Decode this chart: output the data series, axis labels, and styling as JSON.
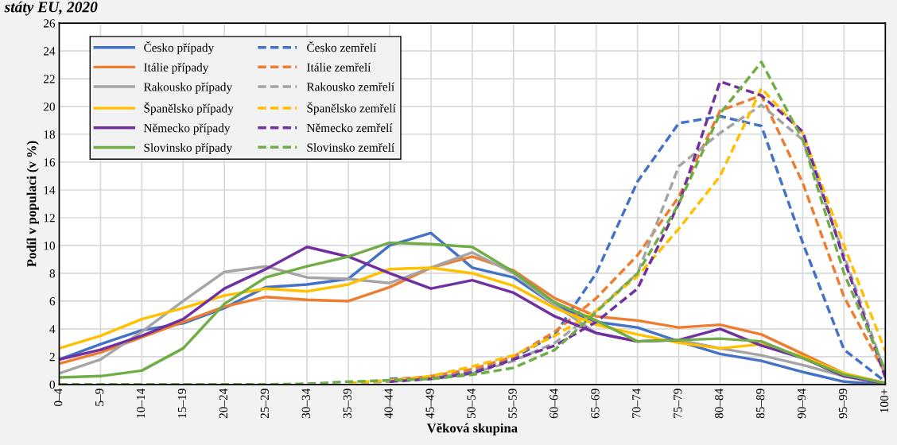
{
  "chart_data": {
    "type": "line",
    "title": "státy EU, 2020",
    "xlabel": "Věková skupina",
    "ylabel": "Podíl v populaci (v %)",
    "categories": [
      "0–4",
      "5–9",
      "10–14",
      "15–19",
      "20–24",
      "25–29",
      "30–34",
      "35–39",
      "40–44",
      "45–49",
      "50–54",
      "55–59",
      "60–64",
      "65–69",
      "70–74",
      "75–79",
      "80–84",
      "85–89",
      "90–94",
      "95–99",
      "100+"
    ],
    "ylim": [
      0,
      26
    ],
    "yticks": [
      0,
      2,
      4,
      6,
      8,
      10,
      12,
      14,
      16,
      18,
      20,
      22,
      24,
      26
    ],
    "grid": true,
    "legend": "top left",
    "marker": "none",
    "series": [
      {
        "name": "Česko případy",
        "color": "#4472c4",
        "line_style": "solid",
        "values": [
          1.8,
          2.9,
          3.9,
          4.4,
          5.5,
          7.0,
          7.2,
          7.6,
          10.0,
          10.9,
          8.4,
          7.7,
          5.7,
          4.5,
          4.1,
          3.1,
          2.2,
          1.7,
          0.9,
          0.2,
          0.0
        ]
      },
      {
        "name": "Česko zemřelí",
        "color": "#4472c4",
        "line_style": "dashed",
        "values": [
          null,
          null,
          null,
          null,
          null,
          null,
          null,
          null,
          0.4,
          0.5,
          0.9,
          1.9,
          3.6,
          8.0,
          14.6,
          18.8,
          19.3,
          18.6,
          10.2,
          2.5,
          0.2
        ]
      },
      {
        "name": "Itálie případy",
        "color": "#ed7d31",
        "line_style": "solid",
        "values": [
          1.5,
          2.3,
          3.4,
          4.5,
          5.6,
          6.3,
          6.1,
          6.0,
          7.0,
          8.4,
          9.2,
          8.2,
          6.2,
          4.9,
          4.6,
          4.1,
          4.3,
          3.6,
          2.2,
          0.8,
          0.1
        ]
      },
      {
        "name": "Itálie zemřelí",
        "color": "#ed7d31",
        "line_style": "dashed",
        "values": [
          null,
          null,
          null,
          null,
          null,
          null,
          null,
          null,
          0.3,
          0.6,
          1.1,
          2.0,
          3.8,
          6.2,
          9.3,
          13.5,
          19.7,
          20.8,
          14.5,
          6.3,
          0.8
        ]
      },
      {
        "name": "Rakousko případy",
        "color": "#a5a5a5",
        "line_style": "solid",
        "values": [
          0.8,
          1.8,
          3.8,
          6.0,
          8.1,
          8.5,
          7.7,
          7.6,
          7.3,
          8.4,
          9.5,
          8.0,
          5.7,
          3.7,
          3.1,
          3.2,
          2.6,
          2.1,
          1.4,
          0.6,
          0.05
        ]
      },
      {
        "name": "Rakousko zemřelí",
        "color": "#a5a5a5",
        "line_style": "dashed",
        "values": [
          null,
          null,
          null,
          null,
          null,
          null,
          null,
          0.1,
          0.2,
          0.5,
          0.8,
          1.7,
          3.0,
          5.3,
          8.0,
          15.7,
          18.1,
          20.1,
          17.6,
          9.3,
          0.8
        ]
      },
      {
        "name": "Španělsko případy",
        "color": "#ffc000",
        "line_style": "solid",
        "values": [
          2.6,
          3.5,
          4.7,
          5.5,
          6.4,
          6.9,
          6.7,
          7.2,
          8.3,
          8.4,
          8.0,
          7.1,
          5.5,
          4.3,
          3.6,
          3.0,
          2.6,
          2.9,
          2.0,
          0.8,
          0.1
        ]
      },
      {
        "name": "Španělsko zemřelí",
        "color": "#ffc000",
        "line_style": "dashed",
        "values": [
          null,
          null,
          null,
          null,
          null,
          null,
          null,
          0.1,
          0.3,
          0.6,
          1.3,
          2.1,
          3.5,
          5.3,
          7.8,
          11.2,
          15.0,
          21.3,
          18.1,
          10.0,
          2.4
        ]
      },
      {
        "name": "Německo případy",
        "color": "#7030a0",
        "line_style": "solid",
        "values": [
          1.8,
          2.5,
          3.5,
          4.7,
          6.9,
          8.3,
          9.9,
          9.2,
          8.0,
          6.9,
          7.5,
          6.6,
          4.9,
          3.7,
          3.1,
          3.2,
          4.0,
          2.8,
          1.9,
          0.6,
          0.05
        ]
      },
      {
        "name": "Německo zemřelí",
        "color": "#7030a0",
        "line_style": "dashed",
        "values": [
          null,
          null,
          null,
          null,
          null,
          null,
          null,
          null,
          0.2,
          0.4,
          0.8,
          1.8,
          2.8,
          4.5,
          6.9,
          13.0,
          21.8,
          20.8,
          18.2,
          9.0,
          0.5
        ]
      },
      {
        "name": "Slovinsko případy",
        "color": "#70ad47",
        "line_style": "solid",
        "values": [
          0.5,
          0.6,
          1.0,
          2.6,
          5.8,
          7.7,
          8.5,
          9.2,
          10.2,
          10.1,
          9.9,
          8.1,
          5.9,
          4.6,
          3.1,
          3.2,
          3.3,
          3.1,
          1.9,
          0.7,
          0.1
        ]
      },
      {
        "name": "Slovinsko zemřelí",
        "color": "#70ad47",
        "line_style": "dashed",
        "values": [
          0,
          0,
          0,
          0,
          0,
          0,
          0.05,
          0.2,
          0.3,
          0.4,
          0.7,
          1.2,
          2.5,
          5.2,
          8.0,
          13.0,
          19.5,
          23.2,
          17.6,
          8.0,
          1.0
        ]
      }
    ]
  }
}
